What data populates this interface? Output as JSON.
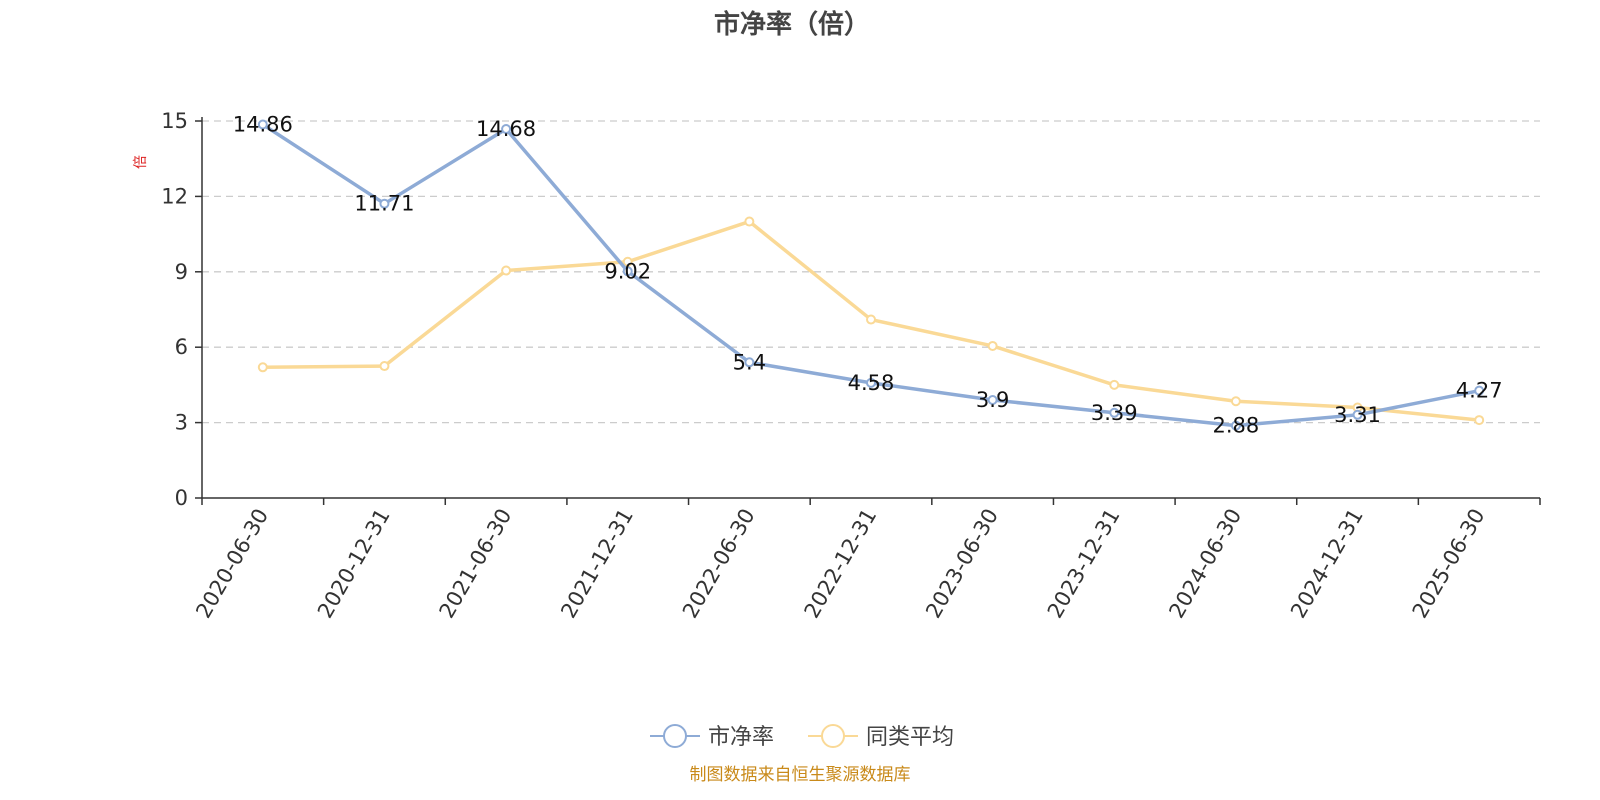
{
  "chart_data": {
    "type": "line",
    "title": "市净率（倍）",
    "ylabel": "倍",
    "ylim": [
      0,
      15
    ],
    "yticks": [
      0,
      3,
      6,
      9,
      12,
      15
    ],
    "grid": true,
    "legend_position": "bottom-center",
    "categories": [
      "2020-06-30",
      "2020-12-31",
      "2021-06-30",
      "2021-12-31",
      "2022-06-30",
      "2022-12-31",
      "2023-06-30",
      "2023-12-31",
      "2024-06-30",
      "2024-12-31",
      "2025-06-30"
    ],
    "series": [
      {
        "name": "市净率",
        "color": "#8eabd6",
        "values": [
          14.86,
          11.71,
          14.68,
          9.02,
          5.4,
          4.58,
          3.9,
          3.39,
          2.88,
          3.31,
          4.27
        ],
        "labels": [
          "14.86",
          "11.71",
          "14.68",
          "9.02",
          "5.4",
          "4.58",
          "3.9",
          "3.39",
          "2.88",
          "3.31",
          "4.27"
        ]
      },
      {
        "name": "同类平均",
        "color": "#fad996",
        "values": [
          5.2,
          5.25,
          9.05,
          9.4,
          11.0,
          7.1,
          6.05,
          4.5,
          3.85,
          3.6,
          3.1
        ]
      }
    ],
    "source": "制图数据来自恒生聚源数据库"
  }
}
